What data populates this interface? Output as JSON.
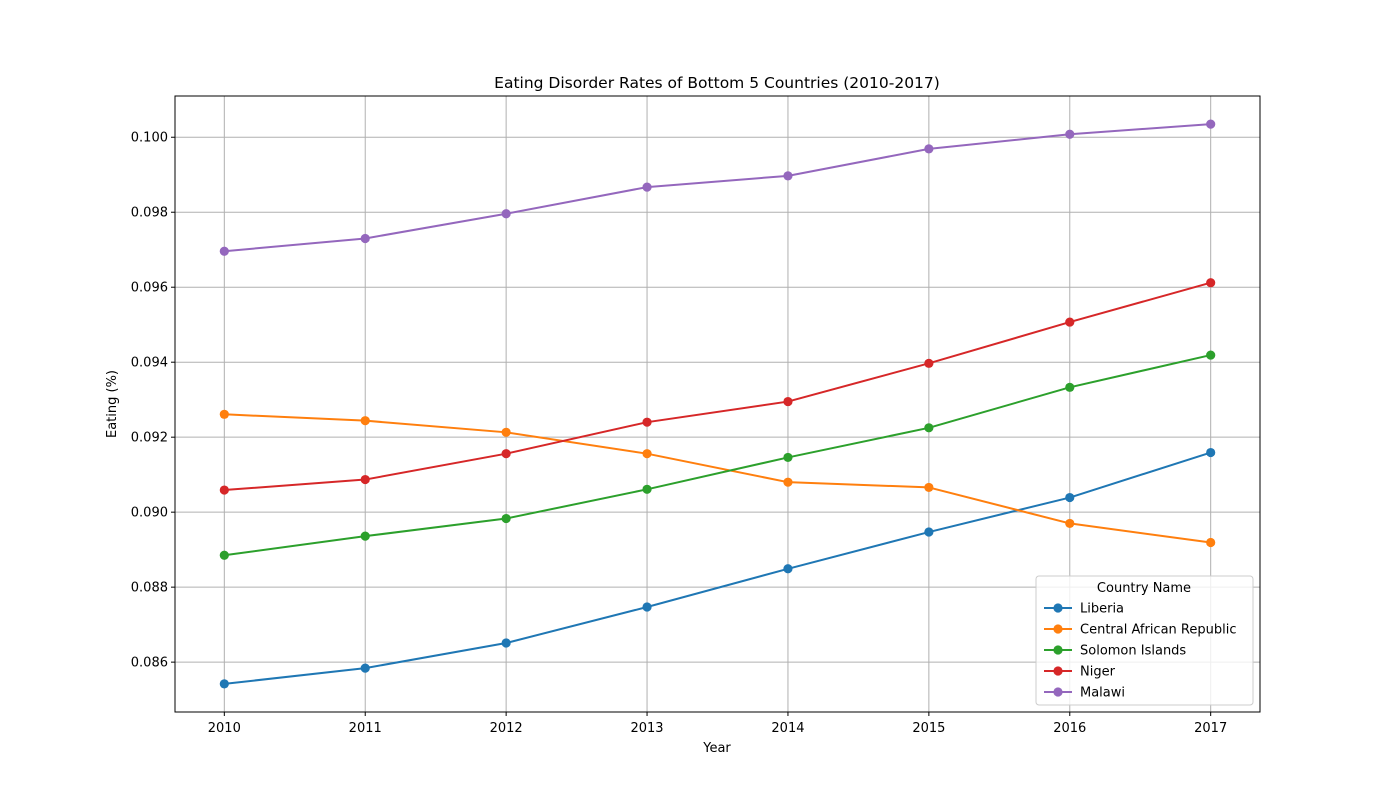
{
  "chart_data": {
    "type": "line",
    "title": "Eating Disorder Rates of Bottom 5 Countries (2010-2017)",
    "xlabel": "Year",
    "ylabel": "Eating (%)",
    "x": [
      2010,
      2011,
      2012,
      2013,
      2014,
      2015,
      2016,
      2017
    ],
    "x_tick_labels": [
      "2010",
      "2011",
      "2012",
      "2013",
      "2014",
      "2015",
      "2016",
      "2017"
    ],
    "xlim": [
      2009.65,
      2017.35
    ],
    "ylim": [
      0.08467,
      0.1011
    ],
    "y_ticks": [
      0.086,
      0.088,
      0.09,
      0.092,
      0.094,
      0.096,
      0.098,
      0.1
    ],
    "y_tick_labels": [
      "0.086",
      "0.088",
      "0.090",
      "0.092",
      "0.094",
      "0.096",
      "0.098",
      "0.100"
    ],
    "grid": true,
    "marker": "circle",
    "legend": {
      "title": "Country Name",
      "placement": "lower-right"
    },
    "series": [
      {
        "name": "Liberia",
        "color": "#1f77b4",
        "values": [
          0.08542,
          0.08584,
          0.08651,
          0.08747,
          0.08849,
          0.08947,
          0.09039,
          0.09159
        ]
      },
      {
        "name": "Central African Republic",
        "color": "#ff7f0e",
        "values": [
          0.09261,
          0.09244,
          0.09213,
          0.09156,
          0.0908,
          0.09066,
          0.0897,
          0.08919
        ]
      },
      {
        "name": "Solomon Islands",
        "color": "#2ca02c",
        "values": [
          0.08885,
          0.08936,
          0.08983,
          0.09061,
          0.09146,
          0.09225,
          0.09333,
          0.09419
        ]
      },
      {
        "name": "Niger",
        "color": "#d62728",
        "values": [
          0.09059,
          0.09087,
          0.09156,
          0.0924,
          0.09295,
          0.09397,
          0.09507,
          0.09612
        ]
      },
      {
        "name": "Malawi",
        "color": "#9467bd",
        "values": [
          0.09696,
          0.0973,
          0.09796,
          0.09867,
          0.09897,
          0.09969,
          0.10008,
          0.10035
        ]
      }
    ]
  }
}
